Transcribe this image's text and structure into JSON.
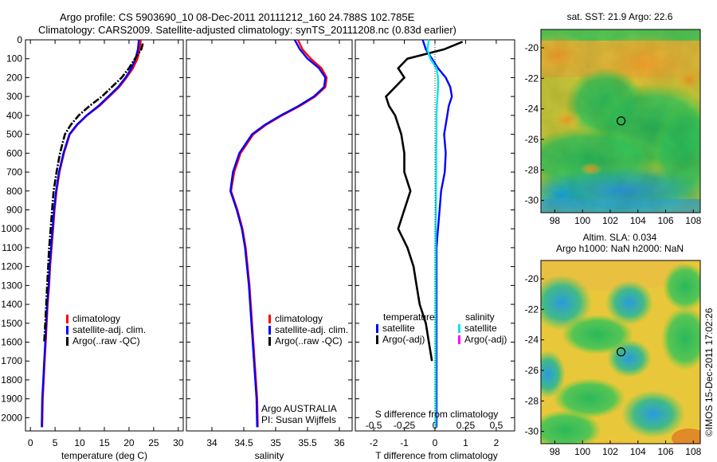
{
  "header": {
    "line1": "Argo profile: CS 5903690_10 08-Dec-2011 20111212_160 24.788S 102.785E",
    "line2": "Climatology: CARS2009. Satellite-adjusted climatology: synTS_20111208.nc (0.83d earlier)"
  },
  "credit": "©IMOS 15-Dec-2011 17:02:26",
  "colors": {
    "climatology": "#ff0000",
    "satellite_adj": "#0000ff",
    "argo": "#000000",
    "sal_satellite": "#00e5ee",
    "sal_argo": "#ff00ff"
  },
  "chart_data": [
    {
      "type": "line",
      "xlabel": "temperature (deg C)",
      "ylabel": "",
      "xlim": [
        -1,
        31
      ],
      "ylim": [
        2070,
        0
      ],
      "x_ticks": [
        0,
        5,
        10,
        15,
        20,
        25,
        30
      ],
      "y_ticks": [
        0,
        100,
        200,
        300,
        400,
        500,
        600,
        700,
        800,
        900,
        1000,
        1100,
        1200,
        1300,
        1400,
        1500,
        1600,
        1700,
        1800,
        1900,
        2000
      ],
      "legend": [
        "climatology",
        "satellite-adj. clim.",
        "Argo(..raw -QC)"
      ],
      "series": [
        {
          "name": "climatology",
          "color": "#ff0000",
          "x": [
            22.4,
            22.2,
            21.7,
            20.8,
            19.5,
            18.0,
            16.0,
            14.0,
            11.5,
            9.5,
            8.0,
            6.8,
            5.9,
            5.3,
            4.9,
            4.6,
            4.3,
            4.0,
            3.8,
            3.5,
            3.3,
            3.1,
            2.9,
            2.7,
            2.5,
            2.4
          ],
          "y": [
            0,
            50,
            100,
            150,
            200,
            250,
            300,
            350,
            400,
            450,
            500,
            600,
            700,
            800,
            900,
            1000,
            1100,
            1200,
            1300,
            1400,
            1500,
            1600,
            1700,
            1800,
            1900,
            2050
          ]
        },
        {
          "name": "satellite-adj. clim.",
          "color": "#0000ff",
          "x": [
            22.0,
            21.8,
            21.3,
            20.5,
            19.3,
            17.8,
            15.8,
            13.8,
            11.4,
            9.4,
            7.9,
            6.7,
            5.8,
            5.2,
            4.8,
            4.5,
            4.2,
            3.9,
            3.7,
            3.4,
            3.2,
            3.0,
            2.8,
            2.6,
            2.4,
            2.3
          ],
          "y": [
            0,
            50,
            100,
            150,
            200,
            250,
            300,
            350,
            400,
            450,
            500,
            600,
            700,
            800,
            900,
            1000,
            1100,
            1200,
            1300,
            1400,
            1500,
            1600,
            1700,
            1800,
            1900,
            2050
          ]
        },
        {
          "name": "Argo(..raw -QC)",
          "color": "#000000",
          "x": [
            22.8,
            22.5,
            21.2,
            20.0,
            18.5,
            16.5,
            14.5,
            12.0,
            9.8,
            8.2,
            7.0,
            6.0,
            5.3,
            4.7,
            4.4,
            4.1,
            3.8,
            3.6,
            3.4,
            3.2,
            3.0,
            2.8
          ],
          "y": [
            20,
            50,
            100,
            150,
            200,
            250,
            300,
            350,
            400,
            450,
            500,
            600,
            700,
            800,
            900,
            1000,
            1100,
            1200,
            1300,
            1400,
            1500,
            1600
          ]
        }
      ]
    },
    {
      "type": "line",
      "xlabel": "salinity",
      "ylabel": "",
      "xlim": [
        33.6,
        36.2
      ],
      "ylim": [
        2070,
        0
      ],
      "x_ticks": [
        34,
        34.5,
        35,
        35.5,
        36
      ],
      "x_tick_labels": [
        "34",
        "34.5",
        "35",
        "35.5",
        "36"
      ],
      "legend": [
        "climatology",
        "satellite-adj. clim.",
        "Argo(..raw -QC)"
      ],
      "annotation": [
        "Argo AUSTRALIA",
        "PI: Susan Wijffels"
      ],
      "series": [
        {
          "name": "climatology",
          "color": "#ff0000",
          "x": [
            35.35,
            35.42,
            35.55,
            35.72,
            35.8,
            35.78,
            35.62,
            35.38,
            35.1,
            34.85,
            34.65,
            34.45,
            34.35,
            34.3,
            34.4,
            34.48,
            34.53,
            34.56,
            34.59,
            34.61,
            34.63,
            34.65,
            34.67,
            34.69,
            34.71,
            34.72
          ],
          "y": [
            0,
            50,
            100,
            150,
            200,
            250,
            300,
            350,
            400,
            450,
            500,
            600,
            700,
            800,
            900,
            1000,
            1100,
            1200,
            1300,
            1400,
            1500,
            1600,
            1700,
            1800,
            1900,
            2050
          ]
        },
        {
          "name": "satellite-adj. clim.",
          "color": "#0000ff",
          "x": [
            35.3,
            35.38,
            35.5,
            35.68,
            35.78,
            35.76,
            35.6,
            35.36,
            35.08,
            34.83,
            34.63,
            34.43,
            34.33,
            34.29,
            34.39,
            34.47,
            34.52,
            34.55,
            34.58,
            34.6,
            34.62,
            34.64,
            34.66,
            34.68,
            34.7,
            34.71
          ],
          "y": [
            0,
            50,
            100,
            150,
            200,
            250,
            300,
            350,
            400,
            450,
            500,
            600,
            700,
            800,
            900,
            1000,
            1100,
            1200,
            1300,
            1400,
            1500,
            1600,
            1700,
            1800,
            1900,
            2050
          ]
        }
      ]
    },
    {
      "type": "line",
      "xlabel": "T difference from climatology",
      "xlabel_top": "S difference from climatology",
      "ylabel": "",
      "xlim": [
        -2.6,
        2.6
      ],
      "ylim": [
        2070,
        0
      ],
      "x_ticks": [
        -2,
        -1,
        0,
        1,
        2
      ],
      "x_top_ticks": [
        -0.5,
        -0.25,
        0,
        0.25,
        0.5
      ],
      "x_top_tick_labels": [
        "-0.5",
        "-0.25",
        "0",
        "0.25",
        "0.5"
      ],
      "legend_temperature": {
        "title": "temperature",
        "items": [
          "satellite",
          "Argo(-adj)"
        ]
      },
      "legend_salinity": {
        "title": "salinity",
        "items": [
          "satellite",
          "Argo(-adj)"
        ]
      },
      "series": [
        {
          "name": "T satellite",
          "color": "#0000ff",
          "x": [
            -0.4,
            -0.3,
            -0.1,
            0.1,
            0.35,
            0.5,
            0.55,
            0.45,
            0.4,
            0.35,
            0.3,
            0.35,
            0.32,
            0.2,
            0.15,
            0.1,
            0.05,
            0.05,
            0.05,
            0.05,
            0.05,
            0.05,
            0.05,
            0.05,
            0.05,
            0.05
          ],
          "y": [
            0,
            50,
            100,
            150,
            200,
            250,
            300,
            350,
            400,
            450,
            500,
            600,
            700,
            800,
            900,
            1000,
            1100,
            1200,
            1300,
            1400,
            1500,
            1600,
            1700,
            1800,
            1900,
            2050
          ]
        },
        {
          "name": "T Argo(-adj)",
          "color": "#000000",
          "x": [
            0.9,
            0.3,
            -0.9,
            -1.2,
            -1.0,
            -1.3,
            -1.6,
            -1.5,
            -1.3,
            -1.2,
            -1.1,
            -1.0,
            -1.0,
            -0.8,
            -1.0,
            -1.2,
            -0.9,
            -0.7,
            -0.6,
            -0.5,
            -0.3,
            -0.2,
            -0.1
          ],
          "y": [
            10,
            50,
            100,
            150,
            200,
            250,
            300,
            350,
            400,
            450,
            500,
            600,
            700,
            800,
            900,
            1000,
            1100,
            1200,
            1300,
            1400,
            1500,
            1600,
            1700
          ]
        },
        {
          "name": "S satellite",
          "color": "#00e5ee",
          "x": [
            -0.2,
            -0.25,
            -0.15,
            0.05,
            0.1,
            0.1,
            0.08,
            0.06,
            0.05,
            0.05,
            0.05,
            0.04,
            0.04,
            0.03,
            0.03,
            0.02,
            0.02,
            0.02,
            0.02,
            0.02,
            0.02,
            0.02,
            0.02,
            0.02,
            0.02,
            0.02
          ],
          "y": [
            0,
            50,
            100,
            150,
            200,
            250,
            300,
            350,
            400,
            450,
            500,
            600,
            700,
            800,
            900,
            1000,
            1100,
            1200,
            1300,
            1400,
            1500,
            1600,
            1700,
            1800,
            1900,
            2050
          ]
        }
      ]
    },
    {
      "type": "heatmap",
      "title": "sat. SST: 21.9 Argo: 22.6",
      "x_ticks": [
        98,
        100,
        102,
        104,
        106,
        108
      ],
      "y_ticks": [
        -20,
        -22,
        -24,
        -26,
        -28,
        -30
      ],
      "xlim": [
        97,
        108.5
      ],
      "ylim": [
        -30.8,
        -18.8
      ],
      "marker": {
        "lon": 102.785,
        "lat": -24.788
      }
    },
    {
      "type": "heatmap",
      "title": "Altim. SLA: 0.034",
      "subtitle": "Argo h1000: NaN h2000: NaN",
      "x_ticks": [
        98,
        100,
        102,
        104,
        106,
        108
      ],
      "y_ticks": [
        -20,
        -22,
        -24,
        -26,
        -28,
        -30
      ],
      "xlim": [
        97,
        108.5
      ],
      "ylim": [
        -30.8,
        -18.8
      ],
      "marker": {
        "lon": 102.785,
        "lat": -24.788
      }
    }
  ]
}
